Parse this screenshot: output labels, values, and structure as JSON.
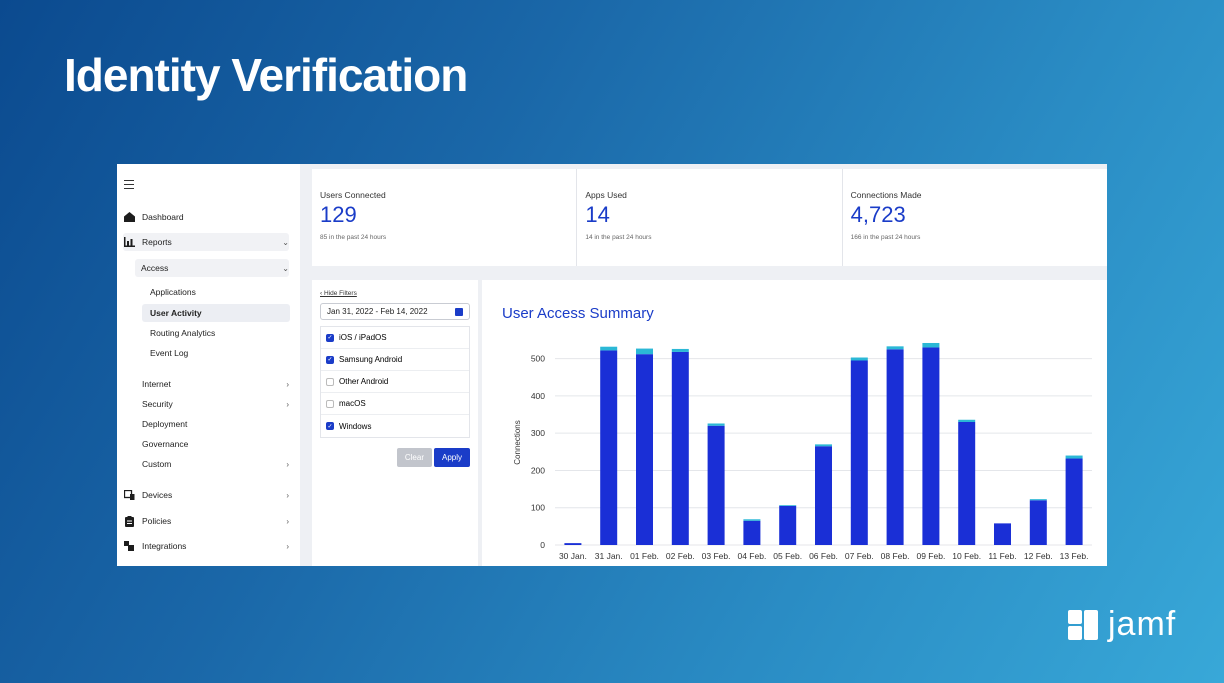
{
  "slide": {
    "title": "Identity Verification",
    "logo_text": "jamf"
  },
  "sidebar": {
    "items": [
      {
        "label": "Dashboard"
      },
      {
        "label": "Reports"
      },
      {
        "label": "Access"
      },
      {
        "label": "Applications"
      },
      {
        "label": "User Activity"
      },
      {
        "label": "Routing Analytics"
      },
      {
        "label": "Event Log"
      },
      {
        "label": "Internet"
      },
      {
        "label": "Security"
      },
      {
        "label": "Deployment"
      },
      {
        "label": "Governance"
      },
      {
        "label": "Custom"
      },
      {
        "label": "Devices"
      },
      {
        "label": "Policies"
      },
      {
        "label": "Integrations"
      }
    ]
  },
  "stats": [
    {
      "label": "Users Connected",
      "value": "129",
      "sub": "85 in the past 24 hours"
    },
    {
      "label": "Apps Used",
      "value": "14",
      "sub": "14 in the past 24 hours"
    },
    {
      "label": "Connections Made",
      "value": "4,723",
      "sub": "166 in the past 24 hours"
    }
  ],
  "filters": {
    "hide_label": "‹ Hide Filters",
    "date_range": "Jan 31, 2022 - Feb 14, 2022",
    "options": [
      {
        "label": "iOS / iPadOS",
        "checked": true
      },
      {
        "label": "Samsung Android",
        "checked": true
      },
      {
        "label": "Other Android",
        "checked": false
      },
      {
        "label": "macOS",
        "checked": false
      },
      {
        "label": "Windows",
        "checked": true
      }
    ],
    "clear_label": "Clear",
    "apply_label": "Apply"
  },
  "chart_data": {
    "type": "bar",
    "title": "User Access Summary",
    "xlabel": "",
    "ylabel": "Connections",
    "ylim": [
      0,
      550
    ],
    "yticks": [
      0,
      100,
      200,
      300,
      400,
      500
    ],
    "grid": true,
    "categories": [
      "30 Jan.",
      "31 Jan.",
      "01 Feb.",
      "02 Feb.",
      "03 Feb.",
      "04 Feb.",
      "05 Feb.",
      "06 Feb.",
      "07 Feb.",
      "08 Feb.",
      "09 Feb.",
      "10 Feb.",
      "11 Feb.",
      "12 Feb.",
      "13 Feb."
    ],
    "series": [
      {
        "values": [
          5,
          522,
          512,
          518,
          320,
          65,
          105,
          265,
          495,
          525,
          530,
          330,
          58,
          120,
          232
        ],
        "color": "#1a2fd6"
      },
      {
        "values": [
          0,
          10,
          15,
          8,
          6,
          4,
          2,
          5,
          8,
          8,
          12,
          6,
          0,
          3,
          8
        ],
        "color": "#2bb8d6"
      }
    ]
  },
  "colors": {
    "accent": "#1a3cc8",
    "bar_primary": "#1a2fd6",
    "bar_secondary": "#2bb8d6"
  }
}
